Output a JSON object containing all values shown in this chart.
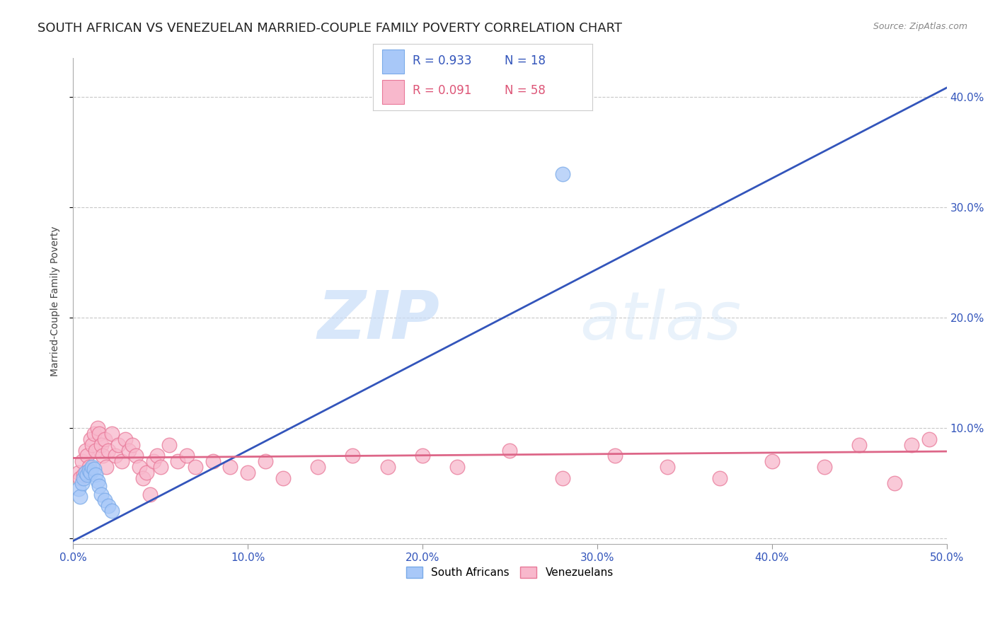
{
  "title": "SOUTH AFRICAN VS VENEZUELAN MARRIED-COUPLE FAMILY POVERTY CORRELATION CHART",
  "source": "Source: ZipAtlas.com",
  "ylabel": "Married-Couple Family Poverty",
  "xlim": [
    0.0,
    0.5
  ],
  "ylim": [
    -0.005,
    0.435
  ],
  "xticks": [
    0.0,
    0.1,
    0.2,
    0.3,
    0.4,
    0.5
  ],
  "xtick_labels": [
    "0.0%",
    "10.0%",
    "20.0%",
    "30.0%",
    "40.0%",
    "50.0%"
  ],
  "yticks": [
    0.0,
    0.1,
    0.2,
    0.3,
    0.4
  ],
  "ytick_labels": [
    "",
    "10.0%",
    "20.0%",
    "30.0%",
    "40.0%"
  ],
  "background_color": "#ffffff",
  "grid_color": "#c8c8c8",
  "south_african_x": [
    0.003,
    0.004,
    0.005,
    0.006,
    0.007,
    0.008,
    0.009,
    0.01,
    0.011,
    0.012,
    0.013,
    0.014,
    0.015,
    0.016,
    0.018,
    0.02,
    0.022,
    0.28
  ],
  "south_african_y": [
    0.045,
    0.038,
    0.05,
    0.055,
    0.06,
    0.058,
    0.062,
    0.06,
    0.065,
    0.063,
    0.058,
    0.052,
    0.048,
    0.04,
    0.035,
    0.03,
    0.025,
    0.33
  ],
  "south_african_color": "#a8c8f8",
  "south_african_edge": "#7aaae8",
  "south_african_R": "0.933",
  "south_african_N": "18",
  "venezuelan_x": [
    0.003,
    0.004,
    0.005,
    0.006,
    0.007,
    0.008,
    0.009,
    0.01,
    0.011,
    0.012,
    0.013,
    0.014,
    0.015,
    0.016,
    0.017,
    0.018,
    0.019,
    0.02,
    0.022,
    0.024,
    0.026,
    0.028,
    0.03,
    0.032,
    0.034,
    0.036,
    0.038,
    0.04,
    0.042,
    0.044,
    0.046,
    0.048,
    0.05,
    0.055,
    0.06,
    0.065,
    0.07,
    0.08,
    0.09,
    0.1,
    0.11,
    0.12,
    0.14,
    0.16,
    0.18,
    0.2,
    0.22,
    0.25,
    0.28,
    0.31,
    0.34,
    0.37,
    0.4,
    0.43,
    0.45,
    0.47,
    0.48,
    0.49
  ],
  "venezuelan_y": [
    0.06,
    0.055,
    0.07,
    0.058,
    0.08,
    0.075,
    0.065,
    0.09,
    0.085,
    0.095,
    0.08,
    0.1,
    0.095,
    0.085,
    0.075,
    0.09,
    0.065,
    0.08,
    0.095,
    0.075,
    0.085,
    0.07,
    0.09,
    0.08,
    0.085,
    0.075,
    0.065,
    0.055,
    0.06,
    0.04,
    0.07,
    0.075,
    0.065,
    0.085,
    0.07,
    0.075,
    0.065,
    0.07,
    0.065,
    0.06,
    0.07,
    0.055,
    0.065,
    0.075,
    0.065,
    0.075,
    0.065,
    0.08,
    0.055,
    0.075,
    0.065,
    0.055,
    0.07,
    0.065,
    0.085,
    0.05,
    0.085,
    0.09
  ],
  "venezuelan_color": "#f8b8cc",
  "venezuelan_edge": "#e87898",
  "venezuelan_R": "0.091",
  "venezuelan_N": "58",
  "sa_line_color": "#3355bb",
  "ven_line_color": "#dd6688",
  "legend_sa_label": "South Africans",
  "legend_ven_label": "Venezuelans",
  "watermark_zip": "ZIP",
  "watermark_atlas": "atlas",
  "title_fontsize": 13,
  "axis_fontsize": 10,
  "tick_fontsize": 11
}
